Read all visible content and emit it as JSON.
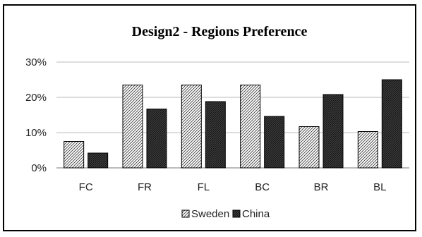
{
  "chart_data": {
    "type": "bar",
    "title": "Design2 - Regions Preference",
    "categories": [
      "FC",
      "FR",
      "FL",
      "BC",
      "BR",
      "BL"
    ],
    "series": [
      {
        "name": "Sweden",
        "values": [
          7.5,
          23.5,
          23.5,
          23.5,
          11.7,
          10.3
        ],
        "pattern": "diagonal-light"
      },
      {
        "name": "China",
        "values": [
          4.2,
          16.7,
          18.8,
          14.6,
          20.8,
          25.0
        ],
        "pattern": "diagonal-dense"
      }
    ],
    "ylim": [
      0,
      30
    ],
    "yticks": [
      "0%",
      "10%",
      "20%",
      "30%"
    ],
    "grid": true,
    "legend": "bottom",
    "xlabel": "",
    "ylabel": ""
  }
}
